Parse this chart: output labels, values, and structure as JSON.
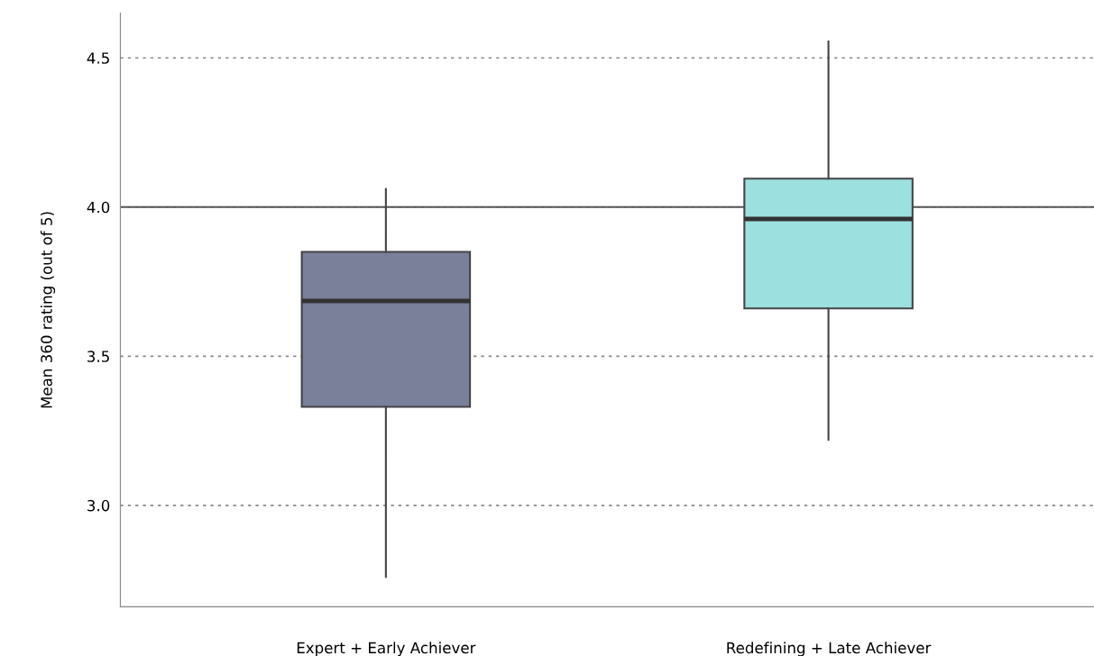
{
  "chart_data": {
    "type": "box",
    "ylabel": "Mean 360 rating (out of 5)",
    "categories": [
      "Expert + Early Achiever",
      "Redefining + Late Achiever"
    ],
    "colors": [
      "#7a7f9a",
      "#9de0e0"
    ],
    "boxes": [
      {
        "low": 2.76,
        "q1": 3.33,
        "median": 3.685,
        "q3": 3.85,
        "high": 4.06
      },
      {
        "low": 3.22,
        "q1": 3.66,
        "median": 3.96,
        "q3": 4.095,
        "high": 4.555
      }
    ],
    "ylim": [
      2.66,
      4.65
    ],
    "yticks": [
      {
        "value": 3,
        "label": "3.0"
      },
      3.5,
      {
        "value": 4,
        "label": "4.0"
      },
      4.5
    ],
    "grid": "y",
    "ref_lines": [
      {
        "axis": "y",
        "value": 4.0,
        "color": "#555555",
        "line_style": "solid"
      }
    ]
  }
}
